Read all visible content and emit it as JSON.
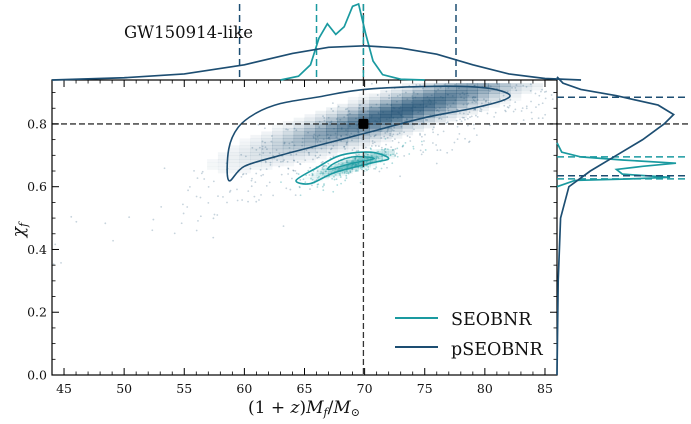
{
  "annotation": "GW150914-like",
  "colors": {
    "seobnr": "#1a9aa0",
    "pseobnr": "#1d4e72",
    "density": "#1d4e72",
    "crosshair": "#333333",
    "injection": "#000000"
  },
  "chart_data": {
    "type": "scatter",
    "subtype": "corner-plot-2d-density-with-marginals",
    "xlabel": "(1 + z)M_f / M_⊙",
    "ylabel": "χ_f",
    "xlim": [
      44,
      86
    ],
    "ylim": [
      0,
      0.94
    ],
    "x_ticks": [
      45,
      50,
      55,
      60,
      65,
      70,
      75,
      80,
      85
    ],
    "y_ticks": [
      0.0,
      0.2,
      0.4,
      0.6,
      0.8
    ],
    "x_tick_labels": [
      "45",
      "50",
      "55",
      "60",
      "65",
      "70",
      "75",
      "80",
      "85"
    ],
    "y_tick_labels": [
      "0.0",
      "0.2",
      "0.4",
      "0.6",
      "0.8"
    ],
    "injection": {
      "x": 69.9,
      "y": 0.8
    },
    "legend": {
      "position": "lower-right",
      "entries": [
        {
          "label": "SEOBNR",
          "series": "seobnr"
        },
        {
          "label": "pSEOBNR",
          "series": "pseobnr"
        }
      ]
    },
    "series": [
      {
        "name": "SEOBNR",
        "key": "seobnr",
        "contour_90": [
          [
            65.5,
            0.61
          ],
          [
            67.5,
            0.645
          ],
          [
            70.5,
            0.675
          ],
          [
            72,
            0.69
          ],
          [
            70.5,
            0.71
          ],
          [
            68,
            0.7
          ],
          [
            66,
            0.66
          ],
          [
            64.3,
            0.62
          ]
        ],
        "contour_50": [
          [
            67,
            0.655
          ],
          [
            69,
            0.675
          ],
          [
            70.8,
            0.69
          ],
          [
            69,
            0.695
          ],
          [
            67.5,
            0.675
          ]
        ],
        "marginal_x": {
          "median_band": [
            66.0,
            69.9
          ]
        },
        "marginal_y": {
          "band": [
            0.625,
            0.695
          ]
        },
        "marginal_x_curve": [
          [
            63,
            0
          ],
          [
            64.5,
            0.05
          ],
          [
            65.5,
            0.2
          ],
          [
            66.2,
            0.55
          ],
          [
            66.9,
            0.74
          ],
          [
            67.6,
            0.6
          ],
          [
            68.3,
            0.7
          ],
          [
            69,
            0.97
          ],
          [
            69.5,
            1.0
          ],
          [
            70.1,
            0.6
          ],
          [
            70.7,
            0.25
          ],
          [
            71.5,
            0.07
          ],
          [
            73,
            0.01
          ],
          [
            75,
            0
          ]
        ],
        "marginal_y_curve": [
          [
            0.6,
            0
          ],
          [
            0.62,
            0.15
          ],
          [
            0.625,
            0.62
          ],
          [
            0.63,
            0.95
          ],
          [
            0.64,
            0.55
          ],
          [
            0.655,
            0.5
          ],
          [
            0.665,
            0.72
          ],
          [
            0.675,
            1.0
          ],
          [
            0.685,
            0.55
          ],
          [
            0.695,
            0.2
          ],
          [
            0.71,
            0.04
          ],
          [
            0.74,
            0
          ]
        ]
      },
      {
        "name": "pSEOBNR",
        "key": "pseobnr",
        "contour_90": [
          [
            58.7,
            0.62
          ],
          [
            60,
            0.665
          ],
          [
            63,
            0.7
          ],
          [
            67,
            0.74
          ],
          [
            71,
            0.78
          ],
          [
            75,
            0.82
          ],
          [
            79,
            0.85
          ],
          [
            81.5,
            0.875
          ],
          [
            82,
            0.895
          ],
          [
            80,
            0.915
          ],
          [
            76,
            0.92
          ],
          [
            70,
            0.91
          ],
          [
            66,
            0.885
          ],
          [
            63,
            0.865
          ],
          [
            61,
            0.835
          ],
          [
            59.5,
            0.79
          ],
          [
            58.7,
            0.72
          ]
        ],
        "marginal_x": {
          "median_band": [
            59.6,
            77.6
          ]
        },
        "marginal_y": {
          "band": [
            0.635,
            0.885
          ]
        },
        "marginal_x_curve": [
          [
            44,
            0
          ],
          [
            50,
            0.03
          ],
          [
            55,
            0.08
          ],
          [
            60,
            0.2
          ],
          [
            64,
            0.35
          ],
          [
            67,
            0.43
          ],
          [
            70,
            0.45
          ],
          [
            73,
            0.42
          ],
          [
            76,
            0.34
          ],
          [
            79,
            0.2
          ],
          [
            82,
            0.08
          ],
          [
            85,
            0.02
          ],
          [
            88,
            0
          ]
        ],
        "marginal_y_curve": [
          [
            0,
            0
          ],
          [
            0.3,
            0.01
          ],
          [
            0.5,
            0.03
          ],
          [
            0.6,
            0.1
          ],
          [
            0.65,
            0.28
          ],
          [
            0.7,
            0.5
          ],
          [
            0.75,
            0.72
          ],
          [
            0.8,
            0.9
          ],
          [
            0.83,
            0.98
          ],
          [
            0.86,
            0.85
          ],
          [
            0.89,
            0.5
          ],
          [
            0.91,
            0.2
          ],
          [
            0.93,
            0.05
          ],
          [
            0.95,
            0
          ]
        ]
      }
    ],
    "density_peak": {
      "x": 72.5,
      "y": 0.835
    }
  }
}
